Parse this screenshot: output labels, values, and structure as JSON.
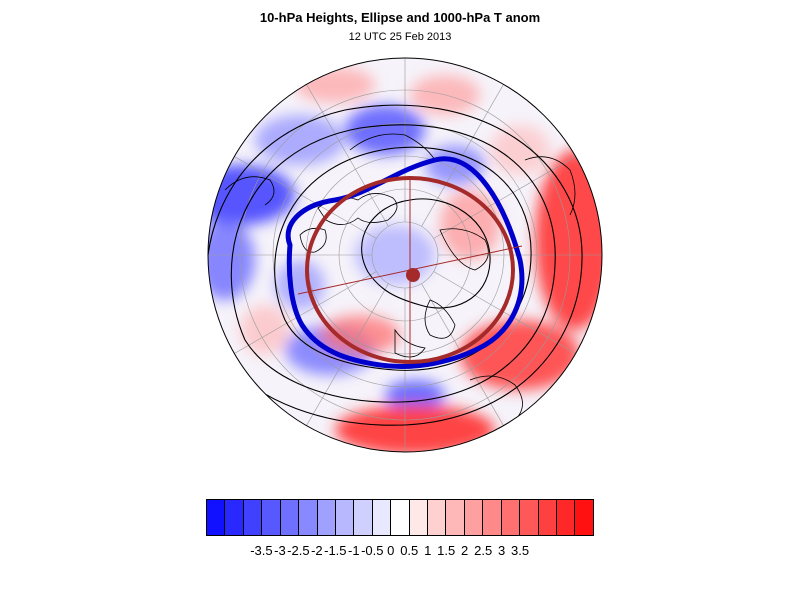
{
  "title": "10-hPa Heights, Ellipse and 1000-hPa T anom",
  "subtitle": "12 UTC 25 Feb 2013",
  "colors": {
    "ellipse": "#a52a2a",
    "contour_highlight": "#0000cc",
    "coastline": "#000000"
  },
  "colorbar": {
    "levels": [
      "-3.5",
      "-3",
      "-2.5",
      "-2",
      "-1.5",
      "-1",
      "-0.5",
      "0",
      "0.5",
      "1",
      "1.5",
      "2",
      "2.5",
      "3",
      "3.5"
    ],
    "colors": [
      "#1111ff",
      "#2828ff",
      "#4040ff",
      "#5858ff",
      "#7070ff",
      "#8888ff",
      "#a0a0ff",
      "#b8b8ff",
      "#d0d0ff",
      "#e8e8ff",
      "#ffffff",
      "#ffe8e8",
      "#ffd0d0",
      "#ffb8b8",
      "#ffa0a0",
      "#ff8888",
      "#ff7070",
      "#ff5858",
      "#ff4040",
      "#ff2828",
      "#ff1111"
    ]
  }
}
